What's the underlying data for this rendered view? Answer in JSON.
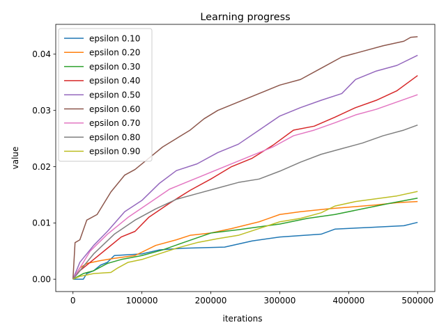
{
  "chart_data": {
    "type": "line",
    "title": "Learning progress",
    "xlabel": "iterations",
    "ylabel": "value",
    "xlim": [
      -25000,
      525000
    ],
    "ylim": [
      -0.0022,
      0.0453
    ],
    "xticks": [
      0,
      100000,
      200000,
      300000,
      400000,
      500000
    ],
    "xtick_labels": [
      "0",
      "100000",
      "200000",
      "300000",
      "400000",
      "500000"
    ],
    "yticks": [
      0.0,
      0.01,
      0.02,
      0.03,
      0.04
    ],
    "ytick_labels": [
      "0.00",
      "0.01",
      "0.02",
      "0.03",
      "0.04"
    ],
    "grid": false,
    "legend_position": "top-left",
    "series": [
      {
        "name": "epsilon 0.10",
        "color": "#1f77b4",
        "points": [
          [
            0,
            0
          ],
          [
            15000,
            0
          ],
          [
            20000,
            0.001
          ],
          [
            30000,
            0.0015
          ],
          [
            40000,
            0.0025
          ],
          [
            50000,
            0.003
          ],
          [
            60000,
            0.0042
          ],
          [
            100000,
            0.0045
          ],
          [
            125000,
            0.0052
          ],
          [
            160000,
            0.0055
          ],
          [
            220000,
            0.0057
          ],
          [
            260000,
            0.0068
          ],
          [
            300000,
            0.0075
          ],
          [
            360000,
            0.008
          ],
          [
            380000,
            0.0089
          ],
          [
            430000,
            0.0092
          ],
          [
            480000,
            0.0095
          ],
          [
            500000,
            0.0101
          ]
        ]
      },
      {
        "name": "epsilon 0.20",
        "color": "#ff7f0e",
        "points": [
          [
            0,
            0
          ],
          [
            10000,
            0.002
          ],
          [
            20000,
            0.0028
          ],
          [
            40000,
            0.0033
          ],
          [
            60000,
            0.0037
          ],
          [
            90000,
            0.0042
          ],
          [
            120000,
            0.006
          ],
          [
            150000,
            0.007
          ],
          [
            170000,
            0.0078
          ],
          [
            200000,
            0.0082
          ],
          [
            230000,
            0.009
          ],
          [
            270000,
            0.0102
          ],
          [
            300000,
            0.0115
          ],
          [
            330000,
            0.012
          ],
          [
            370000,
            0.0125
          ],
          [
            400000,
            0.0128
          ],
          [
            440000,
            0.0132
          ],
          [
            470000,
            0.0136
          ],
          [
            500000,
            0.0138
          ]
        ]
      },
      {
        "name": "epsilon 0.30",
        "color": "#2ca02c",
        "points": [
          [
            0,
            0
          ],
          [
            15000,
            0.001
          ],
          [
            30000,
            0.0015
          ],
          [
            50000,
            0.0028
          ],
          [
            70000,
            0.0035
          ],
          [
            100000,
            0.0042
          ],
          [
            130000,
            0.0052
          ],
          [
            160000,
            0.0065
          ],
          [
            200000,
            0.0082
          ],
          [
            240000,
            0.0088
          ],
          [
            270000,
            0.0093
          ],
          [
            300000,
            0.0098
          ],
          [
            340000,
            0.0108
          ],
          [
            380000,
            0.0115
          ],
          [
            420000,
            0.0125
          ],
          [
            460000,
            0.0135
          ],
          [
            500000,
            0.0144
          ]
        ]
      },
      {
        "name": "epsilon 0.40",
        "color": "#d62728",
        "points": [
          [
            0,
            0
          ],
          [
            10000,
            0.0015
          ],
          [
            25000,
            0.003
          ],
          [
            50000,
            0.0055
          ],
          [
            70000,
            0.0075
          ],
          [
            90000,
            0.0085
          ],
          [
            110000,
            0.011
          ],
          [
            140000,
            0.0135
          ],
          [
            170000,
            0.0158
          ],
          [
            200000,
            0.0178
          ],
          [
            230000,
            0.02
          ],
          [
            260000,
            0.0215
          ],
          [
            290000,
            0.0238
          ],
          [
            320000,
            0.0265
          ],
          [
            350000,
            0.0272
          ],
          [
            380000,
            0.0288
          ],
          [
            410000,
            0.0305
          ],
          [
            440000,
            0.0318
          ],
          [
            470000,
            0.0335
          ],
          [
            500000,
            0.0362
          ]
        ]
      },
      {
        "name": "epsilon 0.50",
        "color": "#9467bd",
        "points": [
          [
            0,
            0
          ],
          [
            10000,
            0.003
          ],
          [
            30000,
            0.006
          ],
          [
            50000,
            0.0085
          ],
          [
            75000,
            0.012
          ],
          [
            100000,
            0.014
          ],
          [
            125000,
            0.017
          ],
          [
            150000,
            0.0193
          ],
          [
            180000,
            0.0205
          ],
          [
            210000,
            0.0225
          ],
          [
            240000,
            0.024
          ],
          [
            270000,
            0.0265
          ],
          [
            300000,
            0.029
          ],
          [
            330000,
            0.0305
          ],
          [
            360000,
            0.0318
          ],
          [
            390000,
            0.033
          ],
          [
            410000,
            0.0355
          ],
          [
            440000,
            0.037
          ],
          [
            470000,
            0.038
          ],
          [
            500000,
            0.0398
          ]
        ]
      },
      {
        "name": "epsilon 0.60",
        "color": "#8c564b",
        "points": [
          [
            0,
            0
          ],
          [
            3000,
            0.0065
          ],
          [
            10000,
            0.007
          ],
          [
            20000,
            0.0105
          ],
          [
            35000,
            0.0115
          ],
          [
            55000,
            0.0155
          ],
          [
            75000,
            0.0185
          ],
          [
            90000,
            0.0195
          ],
          [
            110000,
            0.0215
          ],
          [
            130000,
            0.0235
          ],
          [
            150000,
            0.025
          ],
          [
            170000,
            0.0265
          ],
          [
            190000,
            0.0285
          ],
          [
            210000,
            0.03
          ],
          [
            240000,
            0.0315
          ],
          [
            270000,
            0.033
          ],
          [
            300000,
            0.0345
          ],
          [
            330000,
            0.0355
          ],
          [
            360000,
            0.0375
          ],
          [
            390000,
            0.0395
          ],
          [
            420000,
            0.0405
          ],
          [
            450000,
            0.0415
          ],
          [
            480000,
            0.0423
          ],
          [
            490000,
            0.043
          ],
          [
            500000,
            0.0431
          ]
        ]
      },
      {
        "name": "epsilon 0.70",
        "color": "#e377c2",
        "points": [
          [
            0,
            0
          ],
          [
            10000,
            0.002
          ],
          [
            25000,
            0.005
          ],
          [
            50000,
            0.008
          ],
          [
            80000,
            0.011
          ],
          [
            110000,
            0.0135
          ],
          [
            140000,
            0.016
          ],
          [
            170000,
            0.0175
          ],
          [
            200000,
            0.019
          ],
          [
            230000,
            0.0205
          ],
          [
            260000,
            0.022
          ],
          [
            290000,
            0.0235
          ],
          [
            320000,
            0.0255
          ],
          [
            350000,
            0.0265
          ],
          [
            380000,
            0.0278
          ],
          [
            410000,
            0.0292
          ],
          [
            440000,
            0.0302
          ],
          [
            470000,
            0.0315
          ],
          [
            500000,
            0.0328
          ]
        ]
      },
      {
        "name": "epsilon 0.80",
        "color": "#7f7f7f",
        "points": [
          [
            0,
            0
          ],
          [
            10000,
            0.0015
          ],
          [
            30000,
            0.0045
          ],
          [
            60000,
            0.008
          ],
          [
            90000,
            0.0105
          ],
          [
            120000,
            0.0125
          ],
          [
            150000,
            0.0142
          ],
          [
            180000,
            0.0152
          ],
          [
            210000,
            0.0162
          ],
          [
            240000,
            0.0172
          ],
          [
            270000,
            0.0178
          ],
          [
            300000,
            0.0192
          ],
          [
            330000,
            0.0208
          ],
          [
            360000,
            0.0222
          ],
          [
            390000,
            0.0232
          ],
          [
            420000,
            0.0242
          ],
          [
            450000,
            0.0255
          ],
          [
            480000,
            0.0265
          ],
          [
            500000,
            0.0274
          ]
        ]
      },
      {
        "name": "epsilon 0.90",
        "color": "#bcbd22",
        "points": [
          [
            0,
            0
          ],
          [
            10000,
            0.0005
          ],
          [
            30000,
            0.001
          ],
          [
            55000,
            0.0012
          ],
          [
            65000,
            0.002
          ],
          [
            80000,
            0.003
          ],
          [
            100000,
            0.0035
          ],
          [
            125000,
            0.0045
          ],
          [
            150000,
            0.0055
          ],
          [
            180000,
            0.0065
          ],
          [
            210000,
            0.0072
          ],
          [
            240000,
            0.0078
          ],
          [
            270000,
            0.009
          ],
          [
            300000,
            0.0102
          ],
          [
            330000,
            0.0108
          ],
          [
            360000,
            0.0118
          ],
          [
            380000,
            0.013
          ],
          [
            410000,
            0.0138
          ],
          [
            440000,
            0.0143
          ],
          [
            470000,
            0.0148
          ],
          [
            500000,
            0.0156
          ]
        ]
      }
    ]
  }
}
